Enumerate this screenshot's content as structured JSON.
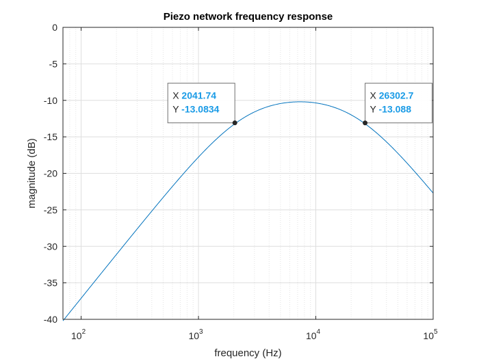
{
  "chart_data": {
    "type": "line",
    "title": "Piezo network frequency response",
    "xlabel": "frequency (Hz)",
    "ylabel": "magnitude (dB)",
    "xscale": "log",
    "xlim": [
      70,
      100000
    ],
    "ylim": [
      -40,
      0
    ],
    "grid": true,
    "minor_grid": true,
    "x_ticks": [
      {
        "value": 100,
        "base": "10",
        "exp": "2"
      },
      {
        "value": 1000,
        "base": "10",
        "exp": "3"
      },
      {
        "value": 10000,
        "base": "10",
        "exp": "4"
      },
      {
        "value": 100000,
        "base": "10",
        "exp": "5"
      }
    ],
    "y_ticks": [
      {
        "value": 0,
        "label": "0"
      },
      {
        "value": -5,
        "label": "-5"
      },
      {
        "value": -10,
        "label": "-10"
      },
      {
        "value": -15,
        "label": "-15"
      },
      {
        "value": -20,
        "label": "-20"
      },
      {
        "value": -25,
        "label": "-25"
      },
      {
        "value": -30,
        "label": "-30"
      },
      {
        "value": -35,
        "label": "-35"
      },
      {
        "value": -40,
        "label": "-40"
      }
    ],
    "series": [
      {
        "name": "magnitude",
        "color": "#0072bd",
        "model": {
          "type": "bandpass-2nd-order",
          "peak_db": -10.2,
          "f_low": 2041.74,
          "f_high": 26302.7
        }
      }
    ],
    "datatips": [
      {
        "x": 2041.74,
        "y": -13.0834,
        "x_label": "X",
        "y_label": "Y",
        "x_text": "2041.74",
        "y_text": "-13.0834",
        "anchor": "upper-left"
      },
      {
        "x": 26302.7,
        "y": -13.088,
        "x_label": "X",
        "y_label": "Y",
        "x_text": "26302.7",
        "y_text": "-13.088",
        "anchor": "upper-right"
      }
    ]
  }
}
